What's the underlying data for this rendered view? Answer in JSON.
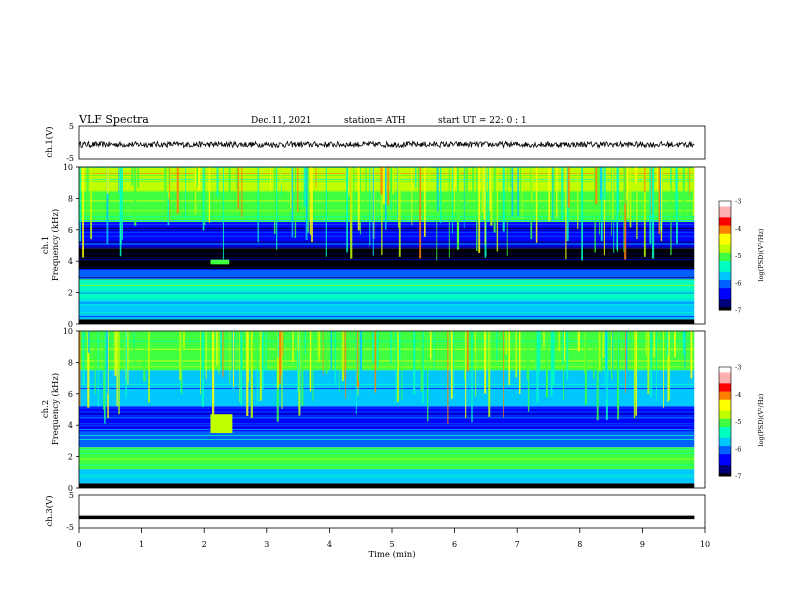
{
  "header": {
    "title": "VLF  Spectra",
    "date": "Dec.11, 2021",
    "station": "station= ATH",
    "start_ut": "start  UT  =   22: 0   : 1"
  },
  "colormap": [
    "#000000",
    "#00007a",
    "#0000ff",
    "#0060ff",
    "#00c8ff",
    "#00ffc0",
    "#40ff40",
    "#c0ff00",
    "#ffff00",
    "#ff8000",
    "#ff0000",
    "#ffb0b0",
    "#ffffff"
  ],
  "chart_data": [
    {
      "type": "line",
      "panel": "ch1-waveform",
      "ylabel": "ch.1(V)",
      "ylim": [
        -5,
        5
      ],
      "yticks": [
        "5",
        "-5"
      ],
      "xlim": [
        0,
        10
      ],
      "series": [
        {
          "values_description_free": true,
          "approx_level_V": -0.6,
          "approx_amplitude_V": 0.9
        }
      ]
    },
    {
      "type": "heatmap",
      "panel": "ch1-spectrogram",
      "ylabel": "Frequency  (kHz)",
      "ylabel2": "ch.1",
      "ylim": [
        0,
        10
      ],
      "yticks": [
        "0",
        "2",
        "4",
        "6",
        "8",
        "10"
      ],
      "xlim": [
        0,
        10
      ],
      "colorbar": {
        "label": "log(PSD)(V²/Hz)",
        "range": [
          -7,
          -3
        ],
        "ticks": [
          "-3",
          "-4",
          "-5",
          "-6",
          "-7"
        ]
      },
      "frequency_bands_kHz": [
        {
          "from": 0,
          "to": 0.3,
          "log_psd": -7
        },
        {
          "from": 0.3,
          "to": 1.5,
          "log_psd": -5.8
        },
        {
          "from": 1.5,
          "to": 2.8,
          "log_psd": -5.3
        },
        {
          "from": 2.8,
          "to": 3.5,
          "log_psd": -6.1
        },
        {
          "from": 3.5,
          "to": 4.8,
          "log_psd": -6.9
        },
        {
          "from": 4.8,
          "to": 6.5,
          "log_psd": -6.4
        },
        {
          "from": 6.5,
          "to": 8.5,
          "log_psd": -5.0
        },
        {
          "from": 8.5,
          "to": 10,
          "log_psd": -4.6
        }
      ],
      "features": [
        {
          "time_min": [
            2.1,
            2.4
          ],
          "freq_kHz": [
            3.8,
            4.1
          ],
          "log_psd": -4.9
        }
      ]
    },
    {
      "type": "heatmap",
      "panel": "ch2-spectrogram",
      "ylabel": "Frequency  (kHz)",
      "ylabel2": "ch.2",
      "ylim": [
        0,
        10
      ],
      "yticks": [
        "0",
        "2",
        "4",
        "6",
        "8",
        "10"
      ],
      "xlim": [
        0,
        10
      ],
      "colorbar": {
        "label": "log(PSD)(V²/Hz)",
        "range": [
          -7,
          -3
        ],
        "ticks": [
          "-3",
          "-4",
          "-5",
          "-6",
          "-7"
        ]
      },
      "frequency_bands_kHz": [
        {
          "from": 0,
          "to": 0.3,
          "log_psd": -7
        },
        {
          "from": 0.3,
          "to": 1.2,
          "log_psd": -5.6
        },
        {
          "from": 1.2,
          "to": 2.6,
          "log_psd": -4.9
        },
        {
          "from": 2.6,
          "to": 3.6,
          "log_psd": -5.9
        },
        {
          "from": 3.6,
          "to": 5.2,
          "log_psd": -6.2
        },
        {
          "from": 5.2,
          "to": 7.5,
          "log_psd": -5.6
        },
        {
          "from": 7.5,
          "to": 10,
          "log_psd": -4.9
        }
      ],
      "features": [
        {
          "time_min": [
            2.1,
            2.45
          ],
          "freq_kHz": [
            3.5,
            4.7
          ],
          "log_psd": -4.8
        }
      ]
    },
    {
      "type": "line",
      "panel": "ch3-waveform",
      "ylabel": "ch.3(V)",
      "ylim": [
        -5,
        5
      ],
      "yticks": [
        "5",
        "-5"
      ],
      "xlim": [
        0,
        10
      ],
      "series": [
        {
          "approx_level_V": -1.8,
          "approx_amplitude_V": 0.1
        }
      ]
    }
  ],
  "xaxis": {
    "label": "Time  (min)",
    "ticks": [
      "0",
      "1",
      "2",
      "3",
      "4",
      "5",
      "6",
      "7",
      "8",
      "9",
      "10"
    ],
    "data_end_min": 9.83
  }
}
